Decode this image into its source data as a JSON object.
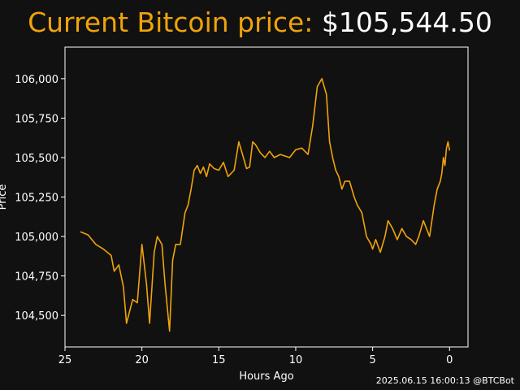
{
  "header": {
    "label": "Current Bitcoin price:",
    "price": "$105,544.50"
  },
  "footer": {
    "timestamp": "2025.06.15 16:00:13 @BTCBot"
  },
  "chart_data": {
    "type": "line",
    "title": "Current Bitcoin price: $105,544.50",
    "xlabel": "Hours Ago",
    "ylabel": "Price",
    "xlim": [
      25,
      -1.2
    ],
    "ylim": [
      104300,
      106200
    ],
    "x_ticks": [
      25,
      20,
      15,
      10,
      5,
      0
    ],
    "y_ticks": [
      104500,
      104750,
      105000,
      105250,
      105500,
      105750,
      106000
    ],
    "y_tick_labels": [
      "104,500",
      "104,750",
      "105,000",
      "105,250",
      "105,500",
      "105,750",
      "106,000"
    ],
    "grid": false,
    "line_color": "#f0a30a",
    "background": "#111111",
    "series": [
      {
        "x": [
          24.0,
          23.5,
          23.0,
          22.5,
          22.0,
          21.8,
          21.5,
          21.2,
          21.0,
          20.6,
          20.3,
          20.0,
          19.7,
          19.5,
          19.2,
          19.0,
          18.7,
          18.5,
          18.2,
          18.0,
          17.8,
          17.5,
          17.2,
          17.0,
          16.8,
          16.6,
          16.4,
          16.2,
          16.0,
          15.8,
          15.6,
          15.3,
          15.0,
          14.7,
          14.4,
          14.0,
          13.7,
          13.4,
          13.2,
          13.0,
          12.8,
          12.6,
          12.3,
          12.0,
          11.7,
          11.4,
          11.0,
          10.7,
          10.4,
          10.0,
          9.6,
          9.2,
          8.9,
          8.6,
          8.3,
          8.0,
          7.8,
          7.6,
          7.4,
          7.2,
          7.0,
          6.8,
          6.5,
          6.2,
          6.0,
          5.7,
          5.4,
          5.1,
          5.0,
          4.8,
          4.5,
          4.2,
          4.0,
          3.7,
          3.4,
          3.1,
          2.8,
          2.5,
          2.2,
          2.0,
          1.7,
          1.5,
          1.3,
          1.0,
          0.8,
          0.6,
          0.5,
          0.4,
          0.3,
          0.2,
          0.1,
          0.0
        ],
        "y": [
          105030,
          105010,
          104950,
          104920,
          104880,
          104780,
          104820,
          104680,
          104450,
          104600,
          104580,
          104950,
          104700,
          104450,
          104900,
          105000,
          104950,
          104700,
          104400,
          104850,
          104950,
          104950,
          105150,
          105200,
          105300,
          105420,
          105450,
          105400,
          105440,
          105380,
          105460,
          105430,
          105420,
          105470,
          105380,
          105420,
          105600,
          105500,
          105430,
          105440,
          105600,
          105580,
          105530,
          105500,
          105540,
          105500,
          105520,
          105510,
          105500,
          105550,
          105560,
          105520,
          105700,
          105950,
          106000,
          105900,
          105600,
          105500,
          105420,
          105380,
          105300,
          105350,
          105350,
          105250,
          105200,
          105150,
          105000,
          104950,
          104920,
          104980,
          104900,
          105000,
          105100,
          105050,
          104980,
          105050,
          105000,
          104980,
          104950,
          105000,
          105100,
          105050,
          105000,
          105200,
          105300,
          105350,
          105400,
          105500,
          105450,
          105560,
          105600,
          105544
        ]
      }
    ]
  }
}
